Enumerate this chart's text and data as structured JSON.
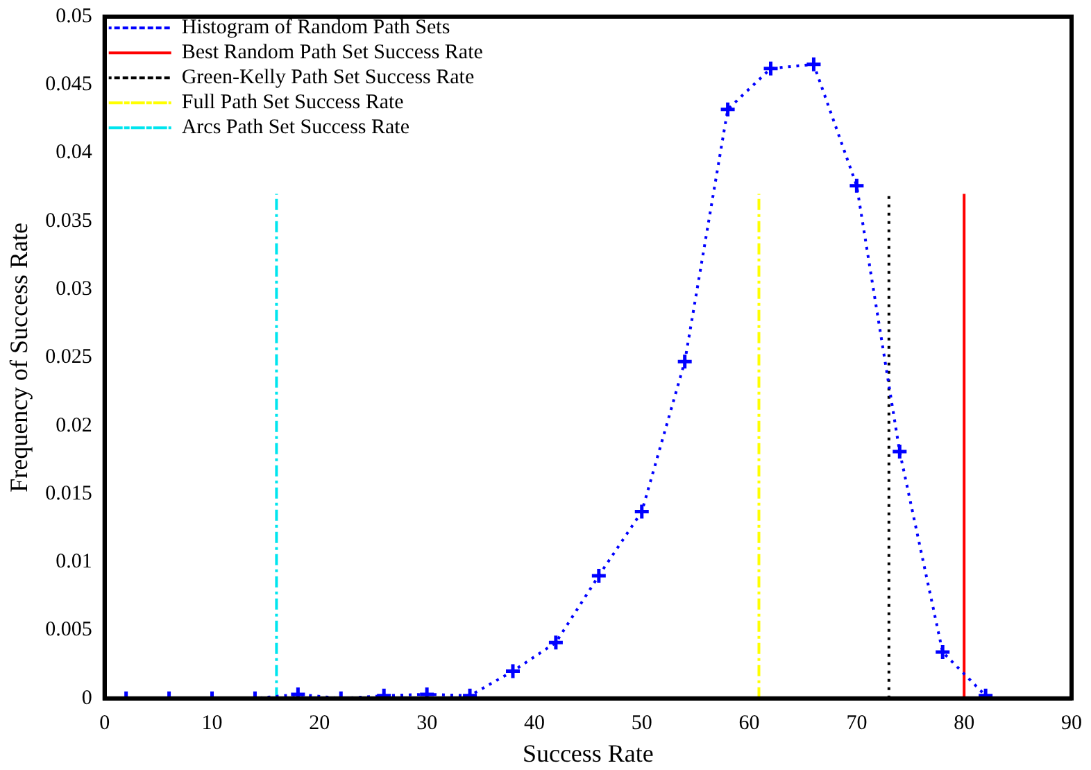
{
  "chart_data": {
    "type": "line",
    "xlabel": "Success Rate",
    "ylabel": "Frequency of Success Rate",
    "xlim": [
      0,
      90
    ],
    "xticks": [
      0,
      10,
      20,
      30,
      40,
      50,
      60,
      70,
      80,
      90
    ],
    "ylim": [
      0,
      0.05
    ],
    "yticks": [
      0,
      0.005,
      0.01,
      0.015,
      0.02,
      0.025,
      0.03,
      0.035,
      0.04,
      0.045,
      0.05
    ],
    "grid": false,
    "legend": "top left",
    "series": [
      {
        "name": "Histogram of Random Path Sets",
        "color": "#0000ff",
        "marker": "cross",
        "line_style": "dotted",
        "x": [
          2,
          6,
          10,
          14,
          18,
          22,
          26,
          30,
          34,
          38,
          42,
          46,
          50,
          54,
          58,
          62,
          66,
          70,
          74,
          78,
          82
        ],
        "values": [
          0,
          0,
          0,
          0,
          0.0003,
          0,
          0.0002,
          0.0003,
          0.0002,
          0.002,
          0.0041,
          0.009,
          0.0137,
          0.0247,
          0.0432,
          0.0462,
          0.0465,
          0.0376,
          0.0181,
          0.0034,
          0.0002
        ]
      },
      {
        "name": "Best Random Path Set Success Rate",
        "color": "#ff0000",
        "marker": "none",
        "line_style": "solid",
        "x": [
          80,
          80
        ],
        "values": [
          0,
          0.037
        ]
      },
      {
        "name": "Green-Kelly Path Set Success Rate",
        "color": "#000000",
        "marker": "none",
        "line_style": "dotted",
        "x": [
          73,
          73
        ],
        "values": [
          0,
          0.037
        ]
      },
      {
        "name": "Full Path Set Success Rate",
        "color": "#ffff00",
        "marker": "none",
        "line_style": "dashdot",
        "x": [
          60.9,
          60.9
        ],
        "values": [
          0,
          0.037
        ]
      },
      {
        "name": "Arcs Path Set Success Rate",
        "color": "#00e5ee",
        "marker": "none",
        "line_style": "dashdot",
        "x": [
          16,
          16
        ],
        "values": [
          0,
          0.037
        ]
      }
    ]
  }
}
